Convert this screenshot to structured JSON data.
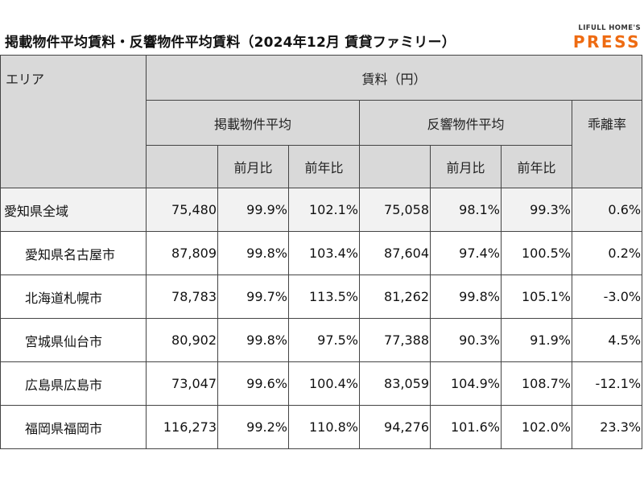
{
  "title": "掲載物件平均賃料・反響物件平均賃料（2024年12月 賃貸ファミリー）",
  "logo": {
    "top": "LIFULL HOME'S",
    "main": "PRESS"
  },
  "table": {
    "area_header": "エリア",
    "rent_header": "賃料（円）",
    "listing_header": "掲載物件平均",
    "response_header": "反響物件平均",
    "gap_header": "乖離率",
    "mom_label": "前月比",
    "yoy_label": "前年比"
  },
  "chart_data": {
    "type": "table",
    "title": "掲載物件平均賃料・反響物件平均賃料（2024年12月 賃貸ファミリー）",
    "columns": [
      "エリア",
      "掲載物件平均",
      "前月比",
      "前年比",
      "反響物件平均",
      "前月比",
      "前年比",
      "乖離率"
    ],
    "rows": [
      {
        "area": "愛知県全域",
        "listing": "75,480",
        "listing_mom": "99.9%",
        "listing_yoy": "102.1%",
        "response": "75,058",
        "response_mom": "98.1%",
        "response_yoy": "99.3%",
        "gap": "0.6%"
      },
      {
        "area": "愛知県名古屋市",
        "listing": "87,809",
        "listing_mom": "99.8%",
        "listing_yoy": "103.4%",
        "response": "87,604",
        "response_mom": "97.4%",
        "response_yoy": "100.5%",
        "gap": "0.2%"
      },
      {
        "area": "北海道札幌市",
        "listing": "78,783",
        "listing_mom": "99.7%",
        "listing_yoy": "113.5%",
        "response": "81,262",
        "response_mom": "99.8%",
        "response_yoy": "105.1%",
        "gap": "-3.0%"
      },
      {
        "area": "宮城県仙台市",
        "listing": "80,902",
        "listing_mom": "99.8%",
        "listing_yoy": "97.5%",
        "response": "77,388",
        "response_mom": "90.3%",
        "response_yoy": "91.9%",
        "gap": "4.5%"
      },
      {
        "area": "広島県広島市",
        "listing": "73,047",
        "listing_mom": "99.6%",
        "listing_yoy": "100.4%",
        "response": "83,059",
        "response_mom": "104.9%",
        "response_yoy": "108.7%",
        "gap": "-12.1%"
      },
      {
        "area": "福岡県福岡市",
        "listing": "116,273",
        "listing_mom": "99.2%",
        "listing_yoy": "110.8%",
        "response": "94,276",
        "response_mom": "101.6%",
        "response_yoy": "102.0%",
        "gap": "23.3%"
      }
    ]
  }
}
